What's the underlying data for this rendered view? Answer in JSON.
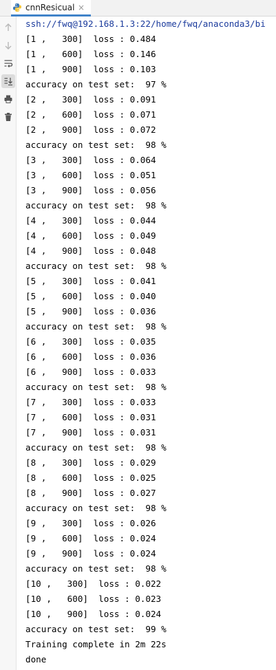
{
  "tab": {
    "title": "cnnResicual",
    "close_glyph": "×",
    "icon": "python-icon"
  },
  "toolbar": {
    "icons": [
      "arrow-up-icon",
      "arrow-down-icon",
      "soft-wrap-icon",
      "scroll-to-end-icon",
      "print-icon",
      "trash-icon"
    ]
  },
  "console": {
    "lines": [
      "ssh://fwq@192.168.1.3:22/home/fwq/anaconda3/bi",
      "[1 ,   300]  loss : 0.484",
      "[1 ,   600]  loss : 0.146",
      "[1 ,   900]  loss : 0.103",
      "accuracy on test set:  97 %",
      "[2 ,   300]  loss : 0.091",
      "[2 ,   600]  loss : 0.071",
      "[2 ,   900]  loss : 0.072",
      "accuracy on test set:  98 %",
      "[3 ,   300]  loss : 0.064",
      "[3 ,   600]  loss : 0.051",
      "[3 ,   900]  loss : 0.056",
      "accuracy on test set:  98 %",
      "[4 ,   300]  loss : 0.044",
      "[4 ,   600]  loss : 0.049",
      "[4 ,   900]  loss : 0.048",
      "accuracy on test set:  98 %",
      "[5 ,   300]  loss : 0.041",
      "[5 ,   600]  loss : 0.040",
      "[5 ,   900]  loss : 0.036",
      "accuracy on test set:  98 %",
      "[6 ,   300]  loss : 0.035",
      "[6 ,   600]  loss : 0.036",
      "[6 ,   900]  loss : 0.033",
      "accuracy on test set:  98 %",
      "[7 ,   300]  loss : 0.033",
      "[7 ,   600]  loss : 0.031",
      "[7 ,   900]  loss : 0.031",
      "accuracy on test set:  98 %",
      "[8 ,   300]  loss : 0.029",
      "[8 ,   600]  loss : 0.025",
      "[8 ,   900]  loss : 0.027",
      "accuracy on test set:  98 %",
      "[9 ,   300]  loss : 0.026",
      "[9 ,   600]  loss : 0.024",
      "[9 ,   900]  loss : 0.024",
      "accuracy on test set:  98 %",
      "[10 ,   300]  loss : 0.022",
      "[10 ,   600]  loss : 0.023",
      "[10 ,   900]  loss : 0.024",
      "accuracy on test set:  99 %",
      "Training complete in 2m 22s",
      "done"
    ]
  }
}
